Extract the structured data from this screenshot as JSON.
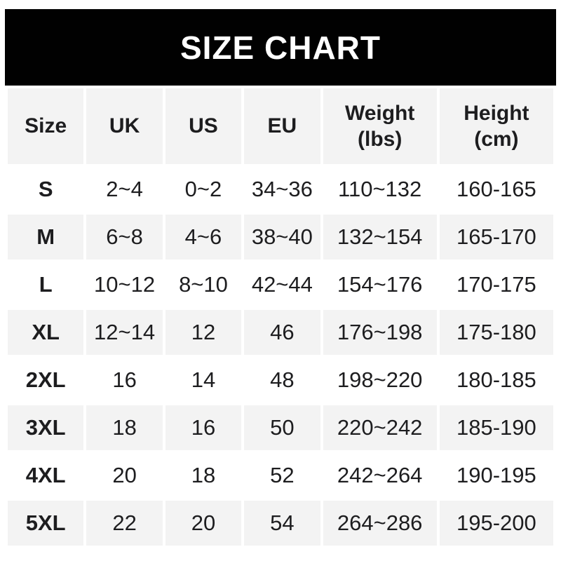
{
  "chart_data": {
    "type": "table",
    "title": "SIZE CHART",
    "columns": [
      "Size",
      "UK",
      "US",
      "EU",
      "Weight (lbs)",
      "Height (cm)"
    ],
    "header_labels": {
      "size": "Size",
      "uk": "UK",
      "us": "US",
      "eu": "EU",
      "weight": "Weight\n(lbs)",
      "height": "Height\n(cm)"
    },
    "rows": [
      {
        "size": "S",
        "uk": "2~4",
        "us": "0~2",
        "eu": "34~36",
        "weight": "110~132",
        "height": "160-165"
      },
      {
        "size": "M",
        "uk": "6~8",
        "us": "4~6",
        "eu": "38~40",
        "weight": "132~154",
        "height": "165-170"
      },
      {
        "size": "L",
        "uk": "10~12",
        "us": "8~10",
        "eu": "42~44",
        "weight": "154~176",
        "height": "170-175"
      },
      {
        "size": "XL",
        "uk": "12~14",
        "us": "12",
        "eu": "46",
        "weight": "176~198",
        "height": "175-180"
      },
      {
        "size": "2XL",
        "uk": "16",
        "us": "14",
        "eu": "48",
        "weight": "198~220",
        "height": "180-185"
      },
      {
        "size": "3XL",
        "uk": "18",
        "us": "16",
        "eu": "50",
        "weight": "220~242",
        "height": "185-190"
      },
      {
        "size": "4XL",
        "uk": "20",
        "us": "18",
        "eu": "52",
        "weight": "242~264",
        "height": "190-195"
      },
      {
        "size": "5XL",
        "uk": "22",
        "us": "20",
        "eu": "54",
        "weight": "264~286",
        "height": "195-200"
      }
    ],
    "layout": {
      "row_striping": "white / light-gray alternating, header gray",
      "grid": "white 4px gutters between cells, no borders"
    }
  },
  "colors": {
    "banner_bg": "#010101",
    "banner_text": "#ffffff",
    "cell_gray": "#f3f3f3",
    "text": "#1d1d1f",
    "page_bg": "#ffffff"
  }
}
